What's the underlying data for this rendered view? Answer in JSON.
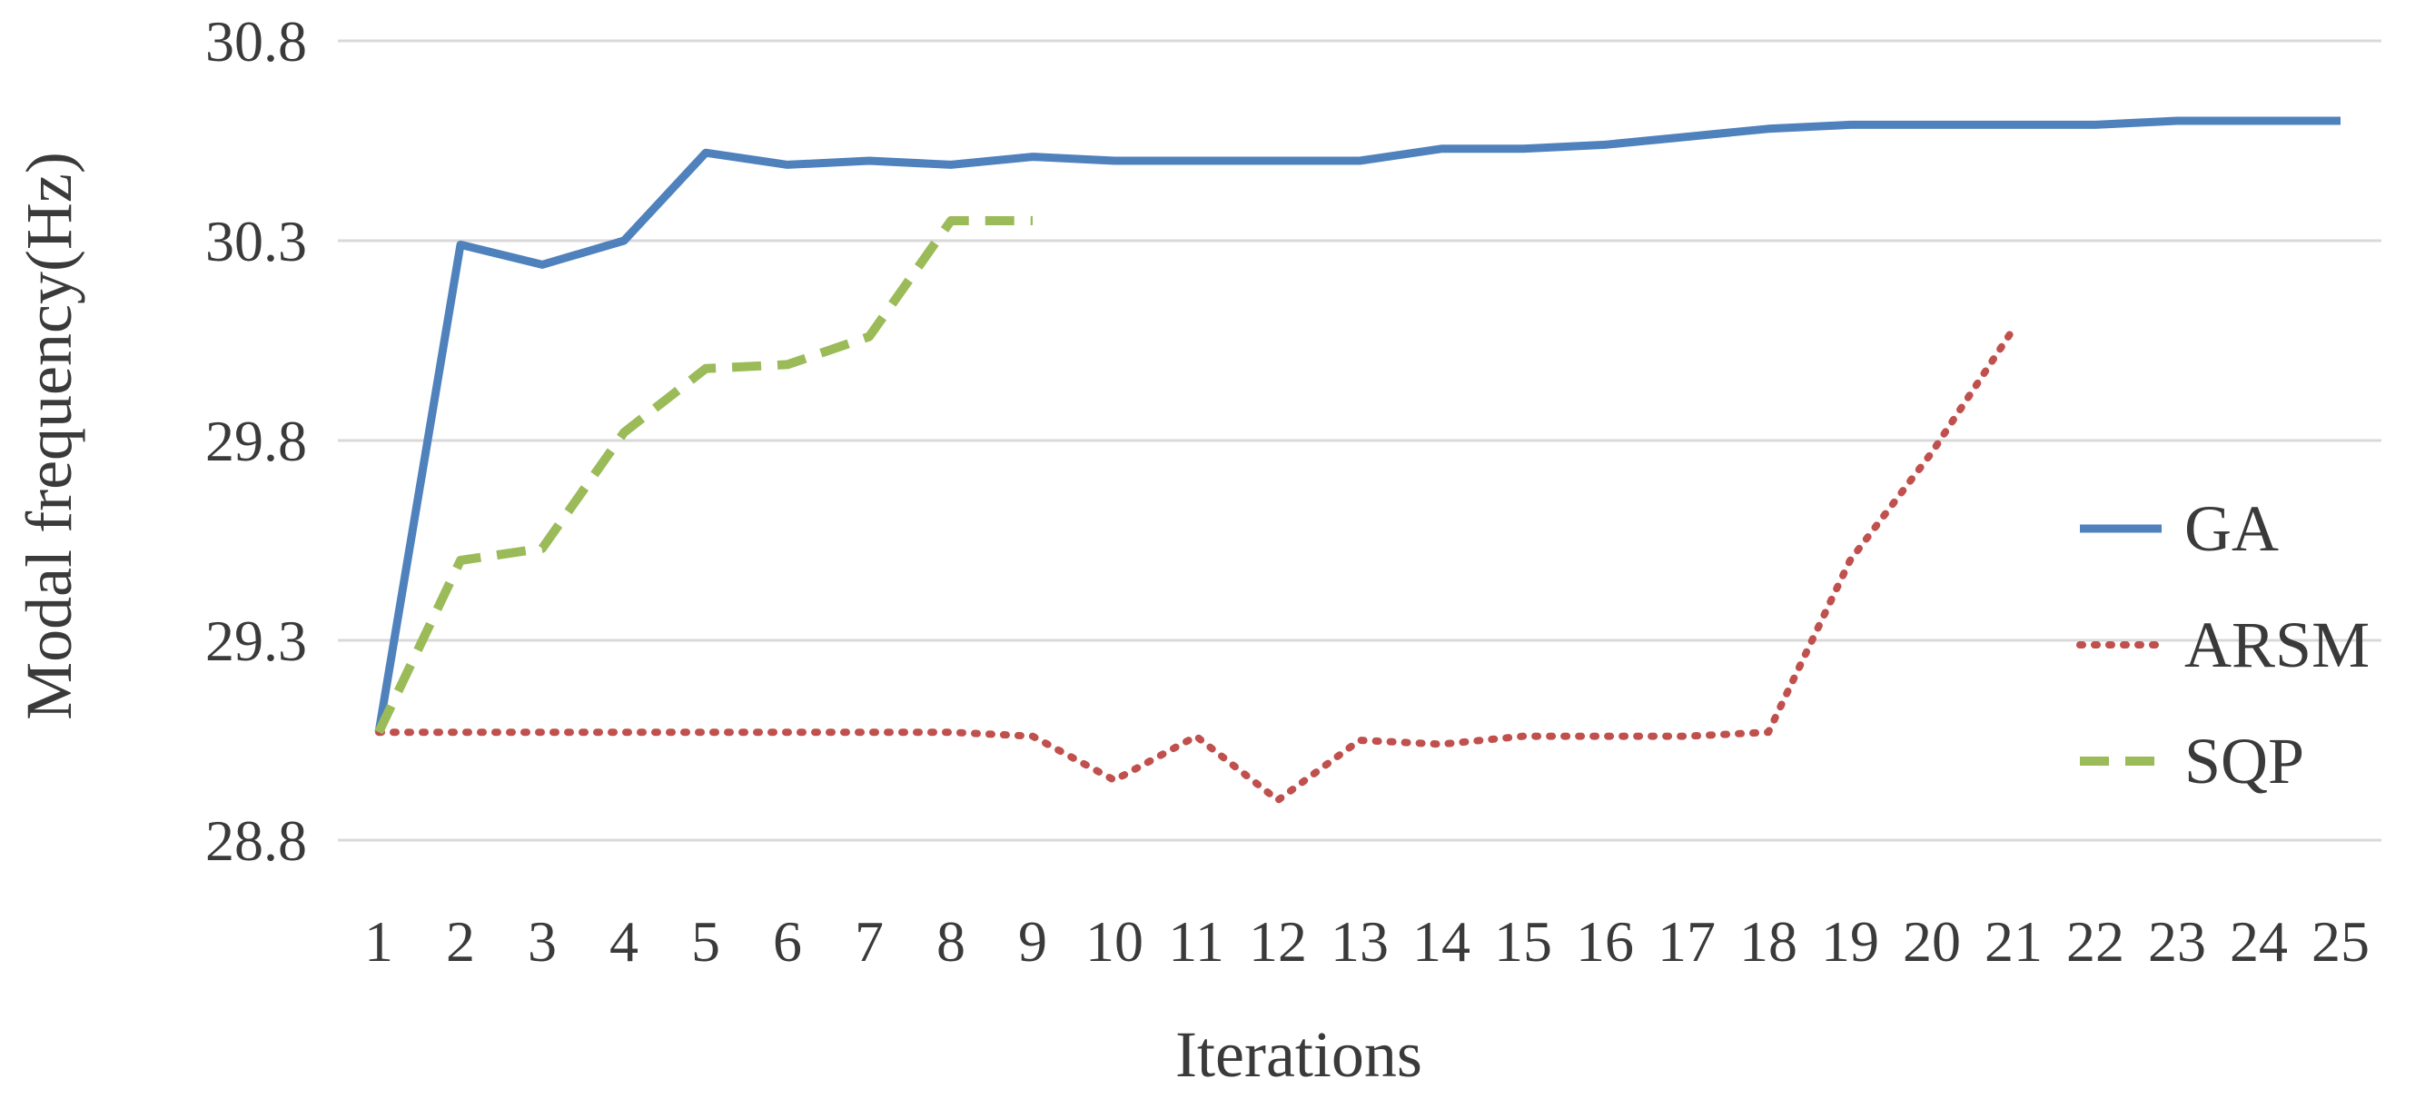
{
  "chart_data": {
    "type": "line",
    "title": "",
    "xlabel": "Iterations",
    "ylabel": "Modal frequency(Hz)",
    "ylim": [
      28.8,
      30.8
    ],
    "yticks": [
      "30.8",
      "30.3",
      "29.8",
      "29.3",
      "28.8"
    ],
    "categories": [
      "1",
      "2",
      "3",
      "4",
      "5",
      "6",
      "7",
      "8",
      "9",
      "10",
      "11",
      "12",
      "13",
      "14",
      "15",
      "16",
      "17",
      "18",
      "19",
      "20",
      "21",
      "22",
      "23",
      "24",
      "25"
    ],
    "grid": true,
    "legend_position": "right",
    "series": [
      {
        "name": "GA",
        "color": "#4f81bd",
        "style": "solid",
        "x": [
          1,
          2,
          3,
          4,
          5,
          6,
          7,
          8,
          9,
          10,
          11,
          12,
          13,
          14,
          15,
          16,
          17,
          18,
          19,
          20,
          21,
          22,
          23,
          24,
          25
        ],
        "values": [
          29.07,
          30.29,
          30.24,
          30.3,
          30.52,
          30.49,
          30.5,
          30.49,
          30.51,
          30.5,
          30.5,
          30.5,
          30.5,
          30.53,
          30.53,
          30.54,
          30.56,
          30.58,
          30.59,
          30.59,
          30.59,
          30.59,
          30.6,
          30.6,
          30.6
        ]
      },
      {
        "name": "ARSM",
        "color": "#c0504d",
        "style": "dotted",
        "x": [
          1,
          2,
          3,
          4,
          5,
          6,
          7,
          8,
          9,
          10,
          11,
          12,
          13,
          14,
          15,
          16,
          17,
          18,
          19,
          20,
          21
        ],
        "values": [
          29.07,
          29.07,
          29.07,
          29.07,
          29.07,
          29.07,
          29.07,
          29.07,
          29.06,
          28.95,
          29.06,
          28.9,
          29.05,
          29.04,
          29.06,
          29.06,
          29.06,
          29.07,
          29.5,
          29.77,
          30.08
        ]
      },
      {
        "name": "SQP",
        "color": "#9bbb59",
        "style": "dashed",
        "x": [
          1,
          2,
          3,
          4,
          5,
          6,
          7,
          8,
          9
        ],
        "values": [
          29.07,
          29.5,
          29.53,
          29.82,
          29.98,
          29.99,
          30.06,
          30.35,
          30.35
        ]
      }
    ]
  }
}
